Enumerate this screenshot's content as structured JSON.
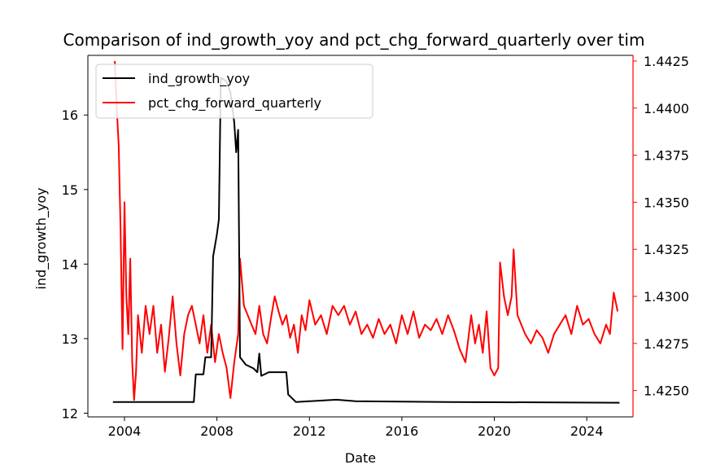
{
  "chart_data": {
    "type": "line",
    "title": "Comparison of ind_growth_yoy and pct_chg_forward_quarterly over tim",
    "xlabel": "Date",
    "ylabel_left": "ind_growth_yoy",
    "ylabel_right": "",
    "x_range": [
      "2002-06",
      "2026-01"
    ],
    "x_ticks": [
      "2004",
      "2008",
      "2012",
      "2016",
      "2020",
      "2024"
    ],
    "ylim_left": [
      11.95,
      16.8
    ],
    "ylim_right": [
      1.4236,
      1.4428
    ],
    "y_ticks_left": [
      "12",
      "13",
      "14",
      "15",
      "16"
    ],
    "y_ticks_right": [
      "1.4250",
      "1.4275",
      "1.4300",
      "1.4325",
      "1.4350",
      "1.4375",
      "1.4400",
      "1.4425"
    ],
    "grid": false,
    "legend_position": "top-left",
    "right_axis_color": "#ff0000",
    "series": [
      {
        "name": "ind_growth_yoy",
        "axis": "left",
        "color": "#000000",
        "points": [
          [
            "2003-07",
            12.15
          ],
          [
            "2007-01",
            12.15
          ],
          [
            "2007-02",
            12.52
          ],
          [
            "2007-06",
            12.52
          ],
          [
            "2007-07",
            12.75
          ],
          [
            "2007-10",
            12.75
          ],
          [
            "2007-11",
            14.1
          ],
          [
            "2008-01",
            14.4
          ],
          [
            "2008-02",
            14.6
          ],
          [
            "2008-03",
            16.5
          ],
          [
            "2008-06",
            16.45
          ],
          [
            "2008-08",
            16.3
          ],
          [
            "2008-10",
            15.9
          ],
          [
            "2008-11",
            15.5
          ],
          [
            "2008-12",
            15.8
          ],
          [
            "2009-01",
            12.75
          ],
          [
            "2009-04",
            12.65
          ],
          [
            "2009-08",
            12.6
          ],
          [
            "2009-10",
            12.55
          ],
          [
            "2009-11",
            12.8
          ],
          [
            "2009-12",
            12.5
          ],
          [
            "2010-04",
            12.55
          ],
          [
            "2010-08",
            12.55
          ],
          [
            "2011-01",
            12.55
          ],
          [
            "2011-02",
            12.25
          ],
          [
            "2011-06",
            12.15
          ],
          [
            "2013-03",
            12.18
          ],
          [
            "2014-01",
            12.16
          ],
          [
            "2018-01",
            12.15
          ],
          [
            "2025-06",
            12.14
          ]
        ]
      },
      {
        "name": "pct_chg_forward_quarterly",
        "axis": "right",
        "color": "#ff0000",
        "points": [
          [
            "2003-08",
            1.4425
          ],
          [
            "2003-09",
            1.44
          ],
          [
            "2003-10",
            1.438
          ],
          [
            "2003-11",
            1.4335
          ],
          [
            "2003-12",
            1.4272
          ],
          [
            "2004-01",
            1.435
          ],
          [
            "2004-02",
            1.43
          ],
          [
            "2004-03",
            1.428
          ],
          [
            "2004-04",
            1.432
          ],
          [
            "2004-05",
            1.4265
          ],
          [
            "2004-06",
            1.4245
          ],
          [
            "2004-07",
            1.426
          ],
          [
            "2004-08",
            1.429
          ],
          [
            "2004-10",
            1.427
          ],
          [
            "2004-12",
            1.4295
          ],
          [
            "2005-02",
            1.428
          ],
          [
            "2005-04",
            1.4295
          ],
          [
            "2005-06",
            1.427
          ],
          [
            "2005-08",
            1.4285
          ],
          [
            "2005-10",
            1.426
          ],
          [
            "2005-12",
            1.4278
          ],
          [
            "2006-02",
            1.43
          ],
          [
            "2006-04",
            1.4275
          ],
          [
            "2006-06",
            1.4258
          ],
          [
            "2006-08",
            1.428
          ],
          [
            "2006-10",
            1.429
          ],
          [
            "2006-12",
            1.4295
          ],
          [
            "2007-02",
            1.4285
          ],
          [
            "2007-04",
            1.4275
          ],
          [
            "2007-06",
            1.429
          ],
          [
            "2007-08",
            1.427
          ],
          [
            "2007-10",
            1.4285
          ],
          [
            "2007-12",
            1.4265
          ],
          [
            "2008-02",
            1.428
          ],
          [
            "2008-04",
            1.427
          ],
          [
            "2008-06",
            1.4262
          ],
          [
            "2008-08",
            1.4246
          ],
          [
            "2008-10",
            1.4265
          ],
          [
            "2008-12",
            1.428
          ],
          [
            "2009-01",
            1.432
          ],
          [
            "2009-03",
            1.4295
          ],
          [
            "2009-05",
            1.429
          ],
          [
            "2009-07",
            1.4285
          ],
          [
            "2009-09",
            1.428
          ],
          [
            "2009-11",
            1.4295
          ],
          [
            "2010-01",
            1.428
          ],
          [
            "2010-03",
            1.4275
          ],
          [
            "2010-05",
            1.4288
          ],
          [
            "2010-07",
            1.43
          ],
          [
            "2010-09",
            1.4292
          ],
          [
            "2010-11",
            1.4285
          ],
          [
            "2011-01",
            1.429
          ],
          [
            "2011-03",
            1.4278
          ],
          [
            "2011-05",
            1.4285
          ],
          [
            "2011-07",
            1.427
          ],
          [
            "2011-09",
            1.429
          ],
          [
            "2011-11",
            1.4282
          ],
          [
            "2012-01",
            1.4298
          ],
          [
            "2012-04",
            1.4285
          ],
          [
            "2012-07",
            1.429
          ],
          [
            "2012-10",
            1.428
          ],
          [
            "2013-01",
            1.4295
          ],
          [
            "2013-04",
            1.429
          ],
          [
            "2013-07",
            1.4295
          ],
          [
            "2013-10",
            1.4285
          ],
          [
            "2014-01",
            1.4292
          ],
          [
            "2014-04",
            1.428
          ],
          [
            "2014-07",
            1.4285
          ],
          [
            "2014-10",
            1.4278
          ],
          [
            "2015-01",
            1.4288
          ],
          [
            "2015-04",
            1.428
          ],
          [
            "2015-07",
            1.4285
          ],
          [
            "2015-10",
            1.4275
          ],
          [
            "2016-01",
            1.429
          ],
          [
            "2016-04",
            1.428
          ],
          [
            "2016-07",
            1.4292
          ],
          [
            "2016-10",
            1.4278
          ],
          [
            "2017-01",
            1.4285
          ],
          [
            "2017-04",
            1.4282
          ],
          [
            "2017-07",
            1.4288
          ],
          [
            "2017-10",
            1.428
          ],
          [
            "2018-01",
            1.429
          ],
          [
            "2018-04",
            1.4282
          ],
          [
            "2018-07",
            1.4272
          ],
          [
            "2018-10",
            1.4265
          ],
          [
            "2019-01",
            1.429
          ],
          [
            "2019-03",
            1.4275
          ],
          [
            "2019-05",
            1.4285
          ],
          [
            "2019-07",
            1.427
          ],
          [
            "2019-09",
            1.4292
          ],
          [
            "2019-11",
            1.4262
          ],
          [
            "2020-01",
            1.4258
          ],
          [
            "2020-03",
            1.4262
          ],
          [
            "2020-04",
            1.4318
          ],
          [
            "2020-06",
            1.43
          ],
          [
            "2020-08",
            1.429
          ],
          [
            "2020-10",
            1.43
          ],
          [
            "2020-11",
            1.4325
          ],
          [
            "2021-01",
            1.429
          ],
          [
            "2021-03",
            1.4285
          ],
          [
            "2021-05",
            1.428
          ],
          [
            "2021-08",
            1.4275
          ],
          [
            "2021-11",
            1.4282
          ],
          [
            "2022-02",
            1.4278
          ],
          [
            "2022-05",
            1.427
          ],
          [
            "2022-08",
            1.428
          ],
          [
            "2022-11",
            1.4285
          ],
          [
            "2023-02",
            1.429
          ],
          [
            "2023-05",
            1.428
          ],
          [
            "2023-08",
            1.4295
          ],
          [
            "2023-11",
            1.4285
          ],
          [
            "2024-02",
            1.4288
          ],
          [
            "2024-05",
            1.428
          ],
          [
            "2024-08",
            1.4275
          ],
          [
            "2024-11",
            1.4285
          ],
          [
            "2025-01",
            1.428
          ],
          [
            "2025-03",
            1.4302
          ],
          [
            "2025-05",
            1.4292
          ]
        ]
      }
    ]
  }
}
